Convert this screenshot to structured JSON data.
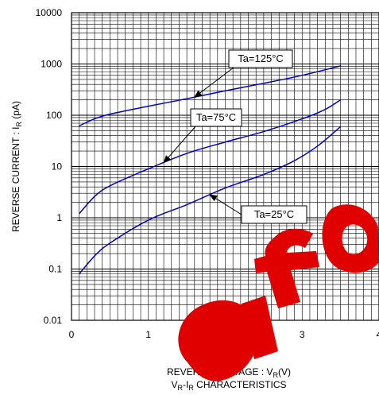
{
  "chart_data": {
    "type": "line",
    "title": "",
    "xlabel_main": "REVERSE VOLTAGE : V",
    "xlabel_sub": "R",
    "xlabel_tail": "(V)",
    "ylabel_main": "REVERSE CURRENT : I",
    "ylabel_sub": "R",
    "ylabel_tail": " (pA)",
    "caption_parts": [
      "V",
      "R",
      "-I",
      "R",
      " CHARACTERISTICS"
    ],
    "xlim": [
      0,
      4
    ],
    "ylim": [
      0.01,
      10000
    ],
    "y_scale": "log",
    "grid": true,
    "x_ticks": [
      "0",
      "1",
      "2",
      "3",
      "4"
    ],
    "y_ticks": [
      "0.01",
      "0.1",
      "1",
      "10",
      "100",
      "1000",
      "10000"
    ],
    "line_color": "#0000cc",
    "series": [
      {
        "name": "Ta=125°C",
        "x": [
          0.1,
          0.3,
          0.5,
          1.0,
          1.5,
          2.0,
          2.5,
          3.0,
          3.5
        ],
        "y": [
          62,
          85,
          105,
          150,
          210,
          300,
          420,
          600,
          920
        ]
      },
      {
        "name": "Ta=75°C",
        "x": [
          0.1,
          0.3,
          0.5,
          1.0,
          1.5,
          2.0,
          2.5,
          3.0,
          3.3,
          3.5
        ],
        "y": [
          1.2,
          2.6,
          4.2,
          9.0,
          18,
          30,
          48,
          85,
          130,
          200
        ]
      },
      {
        "name": "Ta=25°C",
        "x": [
          0.1,
          0.3,
          0.5,
          1.0,
          1.5,
          2.0,
          2.5,
          2.9,
          3.2,
          3.5
        ],
        "y": [
          0.08,
          0.18,
          0.32,
          0.9,
          1.8,
          3.8,
          7.0,
          13,
          25,
          60
        ]
      }
    ],
    "annotations": [
      {
        "label": "Ta=125°C",
        "series": 0
      },
      {
        "label": "Ta=75°C",
        "series": 1
      },
      {
        "label": "Ta=25°C",
        "series": 2
      }
    ]
  }
}
